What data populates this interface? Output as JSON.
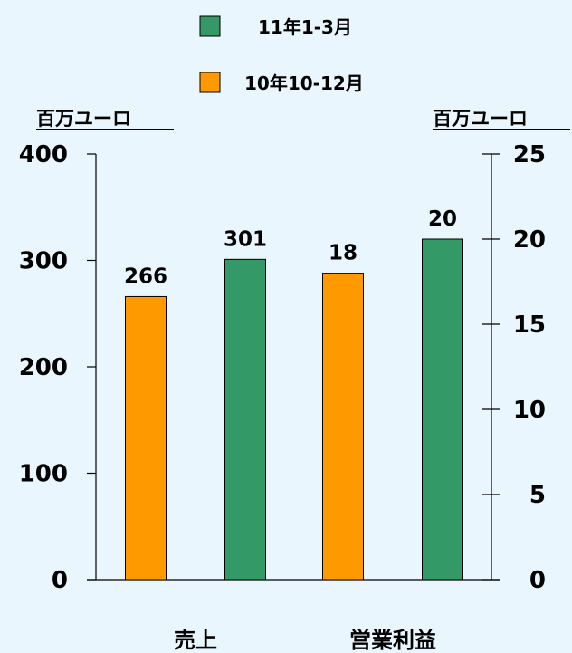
{
  "chart_data": {
    "type": "bar",
    "categories": [
      "売上",
      "営業利益"
    ],
    "series": [
      {
        "name": "10年10-12月",
        "color": "#ff9900",
        "values": [
          266,
          18
        ]
      },
      {
        "name": "11年1-3月",
        "color": "#339966",
        "values": [
          301,
          20
        ]
      }
    ],
    "left_axis": {
      "unit_label": "百万ユーロ",
      "ylim": [
        0,
        400
      ],
      "ticks": [
        "0",
        "100",
        "200",
        "300",
        "400"
      ]
    },
    "right_axis": {
      "unit_label": "百万ユーロ",
      "ylim": [
        0,
        25
      ],
      "ticks": [
        "0",
        "5",
        "10",
        "15",
        "20",
        "25"
      ]
    },
    "series_axis": {
      "売上": "left",
      "営業利益": "right"
    },
    "data_labels": [
      [
        "266",
        "18"
      ],
      [
        "301",
        "20"
      ]
    ],
    "legend": {
      "placement": "top-center",
      "order": [
        1,
        0
      ]
    },
    "grid": false
  }
}
